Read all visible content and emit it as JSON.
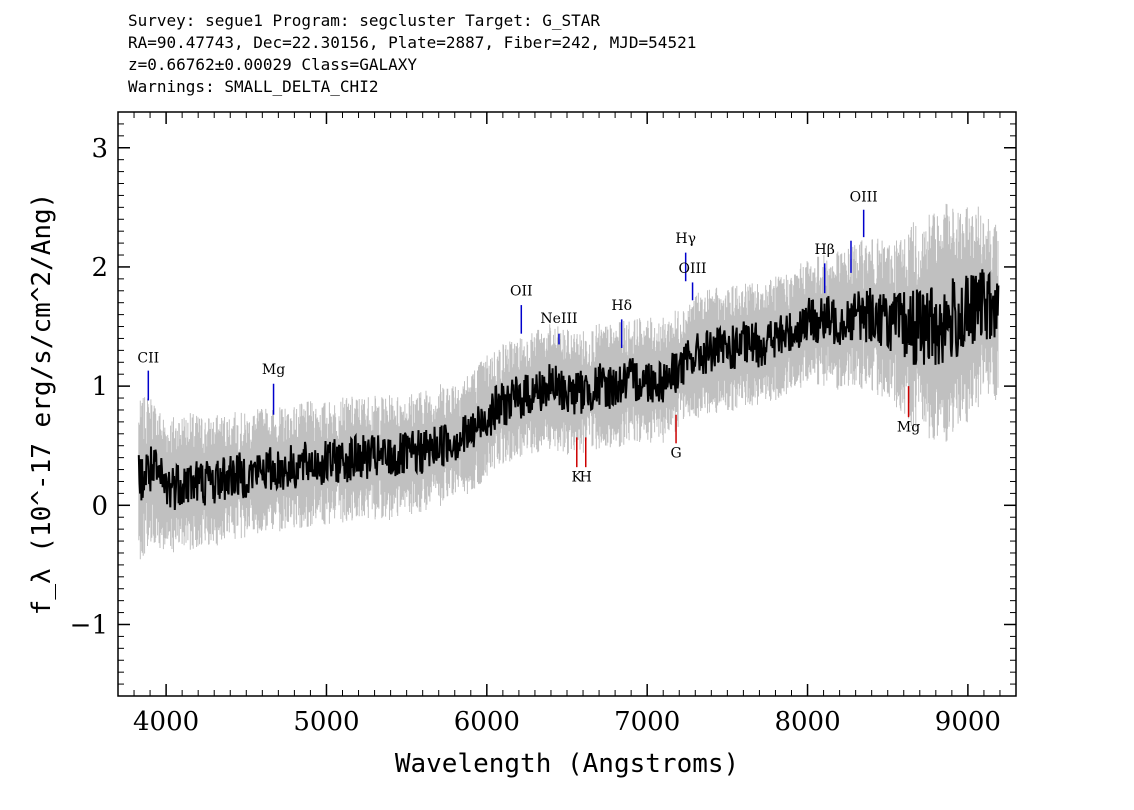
{
  "header": {
    "line1": "Survey: segue1 Program: segcluster Target: G_STAR",
    "line2": "RA=90.47743, Dec=22.30156, Plate=2887, Fiber=242, MJD=54521",
    "line3": "z=0.66762±0.00029 Class=GALAXY",
    "line4": "Warnings: SMALL_DELTA_CHI2"
  },
  "chart_data": {
    "type": "line",
    "xlabel": "Wavelength (Angstroms)",
    "ylabel": "f_λ (10^-17 erg/s/cm^2/Ang)",
    "xlim": [
      3700,
      9300
    ],
    "ylim": [
      -1.6,
      3.3
    ],
    "x_ticks": [
      4000,
      5000,
      6000,
      7000,
      8000,
      9000
    ],
    "y_ticks": [
      -1,
      0,
      1,
      2,
      3
    ],
    "x_tick_labels": [
      "4000",
      "5000",
      "6000",
      "7000",
      "8000",
      "9000"
    ],
    "y_tick_labels": [
      "−1",
      "0",
      "1",
      "2",
      "3"
    ],
    "series": [
      {
        "role": "flux",
        "color": "#000000",
        "x": [
          3830,
          3900,
          4000,
          4100,
          4200,
          4300,
          4400,
          4500,
          4600,
          4700,
          4800,
          4900,
          5000,
          5100,
          5200,
          5300,
          5400,
          5500,
          5600,
          5700,
          5800,
          5900,
          6000,
          6100,
          6200,
          6300,
          6400,
          6500,
          6600,
          6700,
          6800,
          6900,
          7000,
          7100,
          7200,
          7300,
          7400,
          7500,
          7600,
          7700,
          7800,
          7900,
          8000,
          8100,
          8200,
          8300,
          8400,
          8500,
          8600,
          8700,
          8800,
          8900,
          9000,
          9100,
          9190
        ],
        "y": [
          0.2,
          0.3,
          0.15,
          0.2,
          0.2,
          0.2,
          0.25,
          0.25,
          0.3,
          0.3,
          0.32,
          0.35,
          0.35,
          0.38,
          0.4,
          0.4,
          0.4,
          0.42,
          0.45,
          0.5,
          0.55,
          0.6,
          0.75,
          0.85,
          0.9,
          0.95,
          1.0,
          0.95,
          0.95,
          1.0,
          1.0,
          1.05,
          1.05,
          1.05,
          1.15,
          1.25,
          1.3,
          1.3,
          1.35,
          1.35,
          1.4,
          1.45,
          1.55,
          1.55,
          1.55,
          1.6,
          1.6,
          1.55,
          1.5,
          1.5,
          1.5,
          1.55,
          1.6,
          1.7,
          1.6
        ]
      },
      {
        "role": "error",
        "color": "#c0c0c0",
        "x": [
          3830,
          4000,
          4500,
          5000,
          5500,
          6000,
          6500,
          7000,
          7500,
          8000,
          8500,
          8800,
          9000,
          9190
        ],
        "y": [
          0.45,
          0.4,
          0.35,
          0.35,
          0.35,
          0.35,
          0.35,
          0.35,
          0.35,
          0.35,
          0.45,
          0.7,
          0.6,
          0.5
        ]
      }
    ],
    "emission_lines": [
      {
        "label": "CII",
        "x": 3889,
        "y0": 0.88,
        "y1": 1.13,
        "label_y": 1.2,
        "color": "#0000cc"
      },
      {
        "label": "Mg",
        "x": 4670,
        "y0": 0.76,
        "y1": 1.02,
        "label_y": 1.1,
        "color": "#0000cc"
      },
      {
        "label": "OII",
        "x": 6215,
        "y0": 1.44,
        "y1": 1.68,
        "label_y": 1.76,
        "color": "#0000cc"
      },
      {
        "label": "NeIII",
        "x": 6450,
        "y0": 1.35,
        "y1": 1.44,
        "label_y": 1.53,
        "color": "#0000cc"
      },
      {
        "label": "Hδ",
        "x": 6841,
        "y0": 1.32,
        "y1": 1.56,
        "label_y": 1.64,
        "color": "#0000cc"
      },
      {
        "label": "Hγ",
        "x": 7240,
        "y0": 1.88,
        "y1": 2.12,
        "label_y": 2.2,
        "color": "#0000cc"
      },
      {
        "label": "OIII",
        "x": 7283,
        "y0": 1.72,
        "y1": 1.87,
        "label_y": 1.95,
        "color": "#0000cc"
      },
      {
        "label": "Hβ",
        "x": 8107,
        "y0": 1.78,
        "y1": 2.03,
        "label_y": 2.11,
        "color": "#0000cc"
      },
      {
        "label": "",
        "x": 8271,
        "y0": 1.95,
        "y1": 2.22,
        "label_y": 0,
        "color": "#0000cc"
      },
      {
        "label": "OIII",
        "x": 8350,
        "y0": 2.25,
        "y1": 2.48,
        "label_y": 2.55,
        "color": "#0000cc"
      }
    ],
    "absorption_lines": [
      {
        "label": "K",
        "x": 6561,
        "y0": 0.32,
        "y1": 0.57,
        "label_y": 0.2,
        "color": "#cc0000"
      },
      {
        "label": "H",
        "x": 6617,
        "y0": 0.32,
        "y1": 0.57,
        "label_y": 0.2,
        "color": "#cc0000"
      },
      {
        "label": "G",
        "x": 7180,
        "y0": 0.52,
        "y1": 0.76,
        "label_y": 0.4,
        "color": "#cc0000"
      },
      {
        "label": "Mg",
        "x": 8630,
        "y0": 0.74,
        "y1": 1.0,
        "label_y": 0.62,
        "color": "#cc0000"
      }
    ]
  }
}
